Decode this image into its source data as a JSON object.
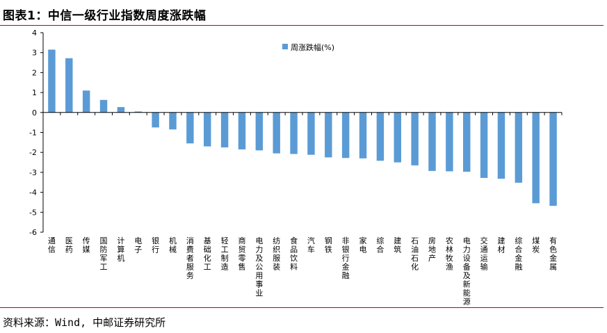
{
  "header": {
    "title": "图表1：中信一级行业指数周度涨跌幅"
  },
  "footer": {
    "source": "资料来源：Wind, 中邮证券研究所"
  },
  "colors": {
    "bar": "#5b9bd5",
    "rule": "#c00000",
    "axis": "#000000"
  },
  "chart_data": {
    "type": "bar",
    "title": "",
    "xlabel": "",
    "ylabel": "",
    "ylim": [
      -6,
      4
    ],
    "yticks": [
      4,
      3,
      2,
      1,
      0,
      -1,
      -2,
      -3,
      -4,
      -5,
      -6
    ],
    "grid": false,
    "legend_position": "top-right",
    "categories": [
      "通信",
      "医药",
      "传媒",
      "国防军工",
      "计算机",
      "电子",
      "银行",
      "机械",
      "消费者服务",
      "基础化工",
      "轻工制造",
      "商贸零售",
      "电力及公用事业",
      "纺织服装",
      "食品饮料",
      "汽车",
      "钢铁",
      "非银行金融",
      "家电",
      "综合",
      "建筑",
      "石油石化",
      "房地产",
      "农林牧渔",
      "电力设备及新能源",
      "交通运输",
      "建材",
      "综合金融",
      "煤炭",
      "有色金属"
    ],
    "series": [
      {
        "name": "周涨跌幅(%)",
        "values": [
          3.15,
          2.72,
          1.1,
          0.63,
          0.27,
          0.05,
          -0.75,
          -0.85,
          -1.55,
          -1.7,
          -1.75,
          -1.85,
          -1.9,
          -2.05,
          -2.08,
          -2.12,
          -2.25,
          -2.28,
          -2.3,
          -2.42,
          -2.5,
          -2.65,
          -2.93,
          -2.95,
          -2.97,
          -3.28,
          -3.32,
          -3.52,
          -4.55,
          -4.68
        ]
      }
    ]
  }
}
